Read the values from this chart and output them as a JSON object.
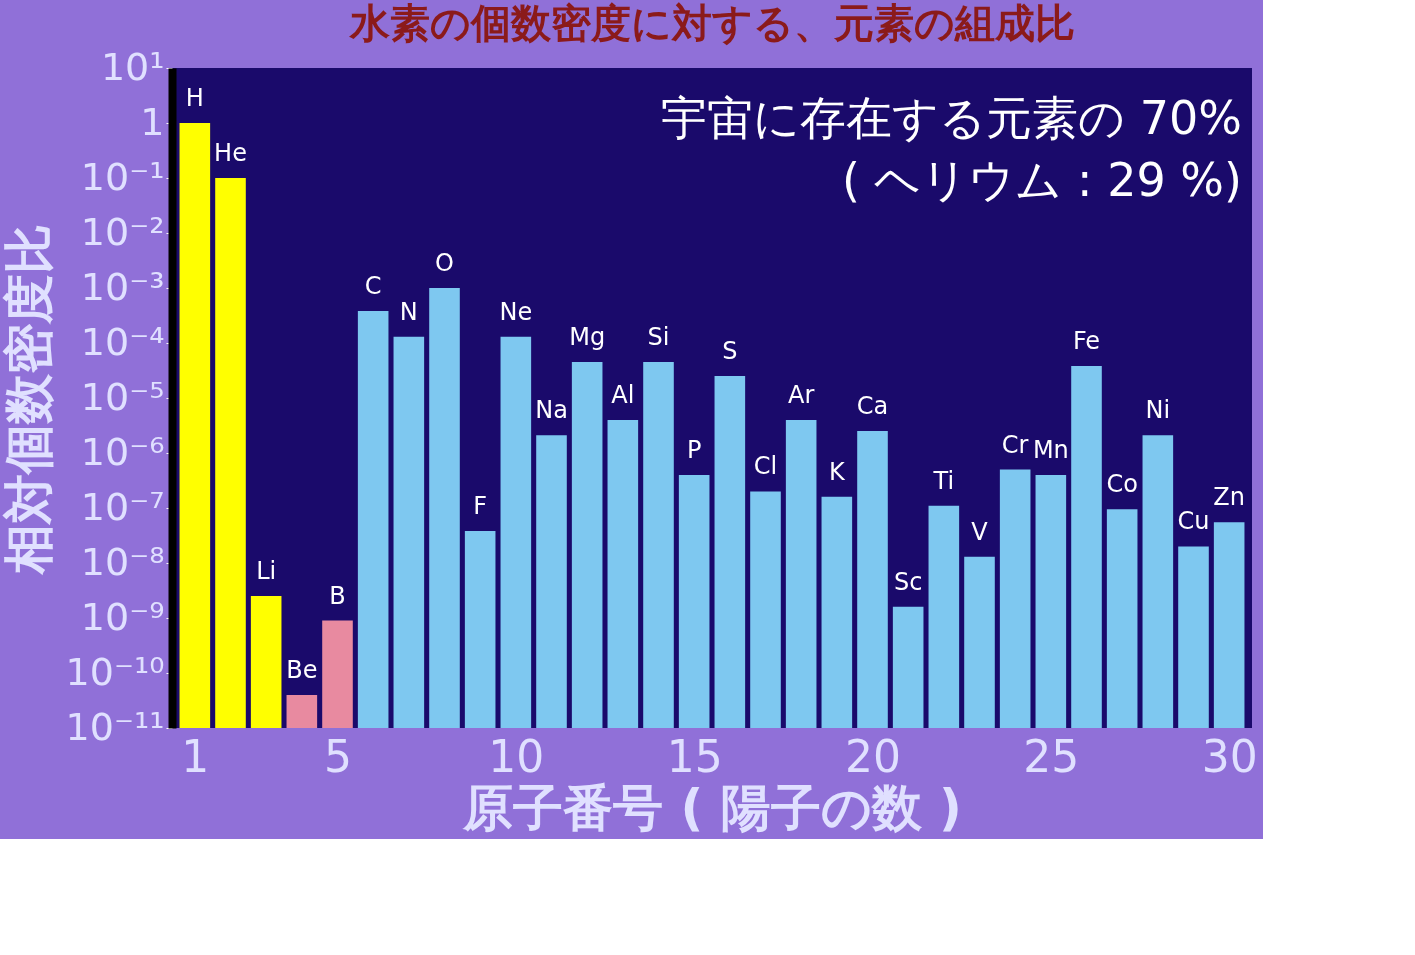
{
  "chart_data": {
    "type": "bar",
    "title": "水素の個数密度に対する、元素の組成比",
    "xlabel": "原子番号 ( 陽子の数 )",
    "ylabel": "相対個数密度比",
    "log": true,
    "grid": false,
    "x": [
      1,
      2,
      3,
      4,
      5,
      6,
      7,
      8,
      9,
      10,
      11,
      12,
      13,
      14,
      15,
      16,
      17,
      18,
      19,
      20,
      21,
      22,
      23,
      24,
      25,
      26,
      27,
      28,
      29,
      30
    ],
    "values": [
      1,
      0.1,
      2.5e-09,
      4e-11,
      9e-10,
      0.00038,
      0.00013,
      0.001,
      3.8e-08,
      0.00013,
      2.1e-06,
      4.5e-05,
      4e-06,
      4.5e-05,
      4e-07,
      2.5e-05,
      2e-07,
      4e-06,
      1.6e-07,
      2.5e-06,
      1.6e-09,
      1.1e-07,
      1.3e-08,
      5e-07,
      4e-07,
      3.8e-05,
      9.5e-08,
      2.1e-06,
      2e-08,
      5.5e-08
    ],
    "colors": [
      "#ffff00",
      "#ffff00",
      "#ffff00",
      "#e88aa0",
      "#e88aa0",
      "#7ec8f0",
      "#7ec8f0",
      "#7ec8f0",
      "#7ec8f0",
      "#7ec8f0",
      "#7ec8f0",
      "#7ec8f0",
      "#7ec8f0",
      "#7ec8f0",
      "#7ec8f0",
      "#7ec8f0",
      "#7ec8f0",
      "#7ec8f0",
      "#7ec8f0",
      "#7ec8f0",
      "#7ec8f0",
      "#7ec8f0",
      "#7ec8f0",
      "#7ec8f0",
      "#7ec8f0",
      "#7ec8f0",
      "#7ec8f0",
      "#7ec8f0",
      "#7ec8f0",
      "#7ec8f0"
    ],
    "value_labels": [
      "H",
      "He",
      "Li",
      "Be",
      "B",
      "C",
      "N",
      "O",
      "F",
      "Ne",
      "Na",
      "Mg",
      "Al",
      "Si",
      "P",
      "S",
      "Cl",
      "Ar",
      "K",
      "Ca",
      "Sc",
      "Ti",
      "V",
      "Cr",
      "Mn",
      "Fe",
      "Co",
      "Ni",
      "Cu",
      "Zn"
    ],
    "xlim": [
      0.5,
      30.5
    ],
    "xticks": [
      1,
      5,
      10,
      15,
      20,
      25,
      30
    ],
    "ylim": [
      1e-11,
      10
    ],
    "yticks": [
      {
        "value": 10,
        "label": "10¹"
      },
      {
        "value": 1,
        "label": "1"
      },
      {
        "value": 0.1,
        "label": "10⁻¹"
      },
      {
        "value": 0.01,
        "label": "10⁻²"
      },
      {
        "value": 0.001,
        "label": "10⁻³"
      },
      {
        "value": 0.0001,
        "label": "10⁻⁴"
      },
      {
        "value": 1e-05,
        "label": "10⁻⁵"
      },
      {
        "value": 1e-06,
        "label": "10⁻⁶"
      },
      {
        "value": 1e-07,
        "label": "10⁻⁷"
      },
      {
        "value": 1e-08,
        "label": "10⁻⁸"
      },
      {
        "value": 1e-09,
        "label": "10⁻⁹"
      },
      {
        "value": 1e-10,
        "label": "10⁻¹⁰"
      },
      {
        "value": 1e-11,
        "label": "10⁻¹¹"
      }
    ],
    "annotations": [
      "宇宙に存在する元素の 70%",
      "( ヘリウム : 29 %)"
    ]
  }
}
